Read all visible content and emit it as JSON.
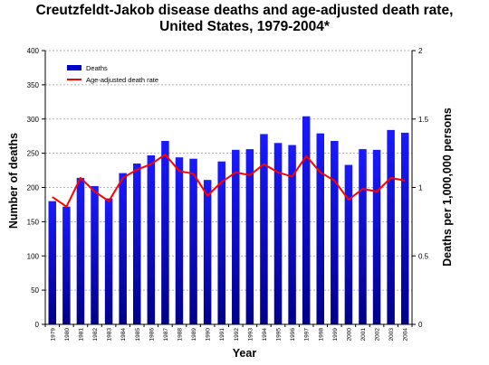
{
  "chart_data": {
    "type": "bar",
    "title_line1": "Creutzfeldt-Jakob disease deaths and age-adjusted death rate,",
    "title_line2": "United States, 1979-2004*",
    "xlabel": "Year",
    "ylabel": "Number of deaths",
    "y2label": "Deaths per 1,000,000 persons",
    "ylim": [
      0,
      400
    ],
    "y2lim": [
      0,
      2
    ],
    "yticks": [
      "0",
      "50",
      "100",
      "150",
      "200",
      "250",
      "300",
      "350",
      "400"
    ],
    "y2ticks": [
      "0",
      "0.5",
      "1",
      "1.5",
      "2"
    ],
    "grid": "horizontal dashed",
    "legend_position": "top-left",
    "categories": [
      "1979",
      "1980",
      "1981",
      "1982",
      "1983",
      "1984",
      "1985",
      "1986",
      "1987",
      "1988",
      "1989",
      "1990",
      "1991",
      "1992",
      "1993",
      "1994",
      "1995",
      "1996",
      "1997",
      "1998",
      "1999",
      "2000",
      "2001",
      "2002",
      "2003",
      "2004"
    ],
    "series": [
      {
        "name": "Deaths",
        "kind": "bar",
        "axis": "left",
        "color": "#0000cc",
        "values": [
          180,
          172,
          214,
          202,
          184,
          221,
          235,
          247,
          268,
          244,
          242,
          211,
          238,
          255,
          256,
          278,
          265,
          262,
          304,
          279,
          268,
          233,
          256,
          255,
          284,
          280
        ]
      },
      {
        "name": "Age-adjusted death rate",
        "kind": "line",
        "axis": "right",
        "color": "#ff0000",
        "values": [
          0.93,
          0.86,
          1.07,
          0.97,
          0.9,
          1.07,
          1.13,
          1.17,
          1.24,
          1.12,
          1.1,
          0.94,
          1.04,
          1.11,
          1.09,
          1.17,
          1.11,
          1.08,
          1.23,
          1.11,
          1.05,
          0.91,
          0.99,
          0.97,
          1.07,
          1.05
        ]
      }
    ]
  }
}
